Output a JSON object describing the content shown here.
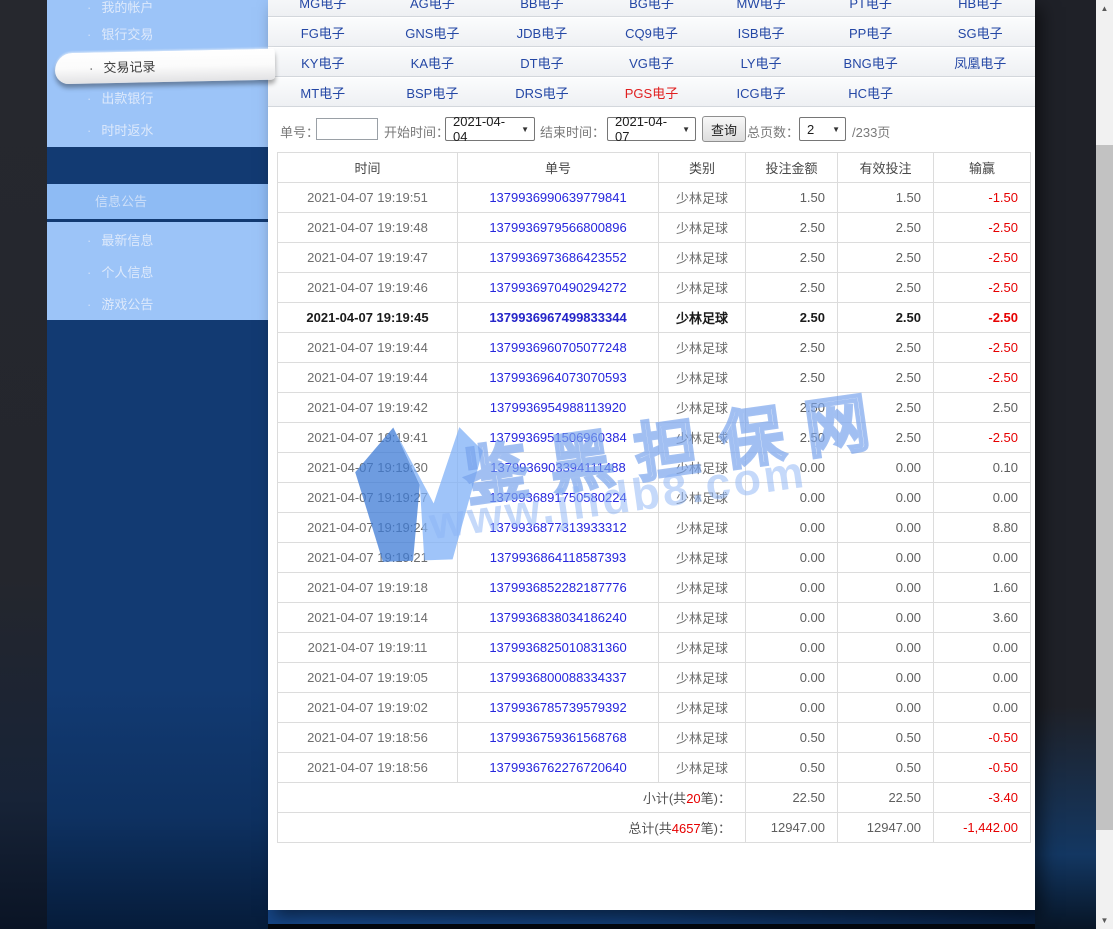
{
  "tabs": {
    "rows": [
      [
        "MG电子",
        "AG电子",
        "BB电子",
        "BG电子",
        "MW电子",
        "PT电子",
        "HB电子"
      ],
      [
        "FG电子",
        "GNS电子",
        "JDB电子",
        "CQ9电子",
        "ISB电子",
        "PP电子",
        "SG电子"
      ],
      [
        "KY电子",
        "KA电子",
        "DT电子",
        "VG电子",
        "LY电子",
        "BNG电子",
        "凤凰电子"
      ],
      [
        "MT电子",
        "BSP电子",
        "DRS电子",
        "PGS电子",
        "ICG电子",
        "HC电子"
      ]
    ],
    "active": "PGS电子"
  },
  "sidebar": {
    "account_menu": [
      {
        "label": "我的帐户",
        "selected": false
      },
      {
        "label": "银行交易",
        "selected": false
      },
      {
        "label": "交易记录",
        "selected": true
      },
      {
        "label": "出款银行",
        "selected": false
      },
      {
        "label": "时时返水",
        "selected": false
      }
    ],
    "section_title": "信息公告",
    "info_menu": [
      {
        "label": "最新信息"
      },
      {
        "label": "个人信息"
      },
      {
        "label": "游戏公告"
      }
    ]
  },
  "filter": {
    "order_label": "单号：",
    "order_value": "",
    "start_label": "开始时间：",
    "start_date": "2021-04-04",
    "end_label": "结束时间：",
    "end_date": "2021-04-07",
    "query_button": "查询",
    "pages_label": "总页数：",
    "page_value": "2",
    "pages_total": "/233页"
  },
  "table": {
    "headers": [
      "时间",
      "单号",
      "类别",
      "投注金额",
      "有效投注",
      "输赢"
    ],
    "highlighted_row": 4,
    "rows": [
      {
        "time": "2021-04-07 19:19:51",
        "order": "1379936990639779841",
        "category": "少林足球",
        "bet": "1.50",
        "valid": "1.50",
        "win": "-1.50"
      },
      {
        "time": "2021-04-07 19:19:48",
        "order": "1379936979566800896",
        "category": "少林足球",
        "bet": "2.50",
        "valid": "2.50",
        "win": "-2.50"
      },
      {
        "time": "2021-04-07 19:19:47",
        "order": "1379936973686423552",
        "category": "少林足球",
        "bet": "2.50",
        "valid": "2.50",
        "win": "-2.50"
      },
      {
        "time": "2021-04-07 19:19:46",
        "order": "1379936970490294272",
        "category": "少林足球",
        "bet": "2.50",
        "valid": "2.50",
        "win": "-2.50"
      },
      {
        "time": "2021-04-07 19:19:45",
        "order": "1379936967499833344",
        "category": "少林足球",
        "bet": "2.50",
        "valid": "2.50",
        "win": "-2.50"
      },
      {
        "time": "2021-04-07 19:19:44",
        "order": "1379936960705077248",
        "category": "少林足球",
        "bet": "2.50",
        "valid": "2.50",
        "win": "-2.50"
      },
      {
        "time": "2021-04-07 19:19:44",
        "order": "1379936964073070593",
        "category": "少林足球",
        "bet": "2.50",
        "valid": "2.50",
        "win": "-2.50"
      },
      {
        "time": "2021-04-07 19:19:42",
        "order": "1379936954988113920",
        "category": "少林足球",
        "bet": "2.50",
        "valid": "2.50",
        "win": "2.50"
      },
      {
        "time": "2021-04-07 19:19:41",
        "order": "1379936951506960384",
        "category": "少林足球",
        "bet": "2.50",
        "valid": "2.50",
        "win": "-2.50"
      },
      {
        "time": "2021-04-07 19:19:30",
        "order": "1379936903394111488",
        "category": "少林足球",
        "bet": "0.00",
        "valid": "0.00",
        "win": "0.10"
      },
      {
        "time": "2021-04-07 19:19:27",
        "order": "1379936891750580224",
        "category": "少林足球",
        "bet": "0.00",
        "valid": "0.00",
        "win": "0.00"
      },
      {
        "time": "2021-04-07 19:19:24",
        "order": "1379936877313933312",
        "category": "少林足球",
        "bet": "0.00",
        "valid": "0.00",
        "win": "8.80"
      },
      {
        "time": "2021-04-07 19:19:21",
        "order": "1379936864118587393",
        "category": "少林足球",
        "bet": "0.00",
        "valid": "0.00",
        "win": "0.00"
      },
      {
        "time": "2021-04-07 19:19:18",
        "order": "1379936852282187776",
        "category": "少林足球",
        "bet": "0.00",
        "valid": "0.00",
        "win": "1.60"
      },
      {
        "time": "2021-04-07 19:19:14",
        "order": "1379936838034186240",
        "category": "少林足球",
        "bet": "0.00",
        "valid": "0.00",
        "win": "3.60"
      },
      {
        "time": "2021-04-07 19:19:11",
        "order": "1379936825010831360",
        "category": "少林足球",
        "bet": "0.00",
        "valid": "0.00",
        "win": "0.00"
      },
      {
        "time": "2021-04-07 19:19:05",
        "order": "1379936800088334337",
        "category": "少林足球",
        "bet": "0.00",
        "valid": "0.00",
        "win": "0.00"
      },
      {
        "time": "2021-04-07 19:19:02",
        "order": "1379936785739579392",
        "category": "少林足球",
        "bet": "0.00",
        "valid": "0.00",
        "win": "0.00"
      },
      {
        "time": "2021-04-07 19:18:56",
        "order": "1379936759361568768",
        "category": "少林足球",
        "bet": "0.50",
        "valid": "0.50",
        "win": "-0.50"
      },
      {
        "time": "2021-04-07 19:18:56",
        "order": "1379936762276720640",
        "category": "少林足球",
        "bet": "0.50",
        "valid": "0.50",
        "win": "-0.50"
      }
    ],
    "subtotal": {
      "prefix": "小计(共",
      "count": "20",
      "suffix": "笔)：",
      "bet": "22.50",
      "valid": "22.50",
      "win": "-3.40"
    },
    "total": {
      "prefix": "总计(共",
      "count": "4657",
      "suffix": "笔)：",
      "bet": "12947.00",
      "valid": "12947.00",
      "win": "-1,442.00"
    }
  },
  "watermark": {
    "brand": "鉴黑担保网",
    "url": "www.jhdb8.com"
  },
  "colors": {
    "tab_blue": "#2447a5",
    "active_tab_red": "#e02020",
    "link_blue": "#2626dd",
    "negative_red": "#e60000",
    "sidebar_light_blue": "#9cc4f8",
    "navy": "#123a72"
  }
}
